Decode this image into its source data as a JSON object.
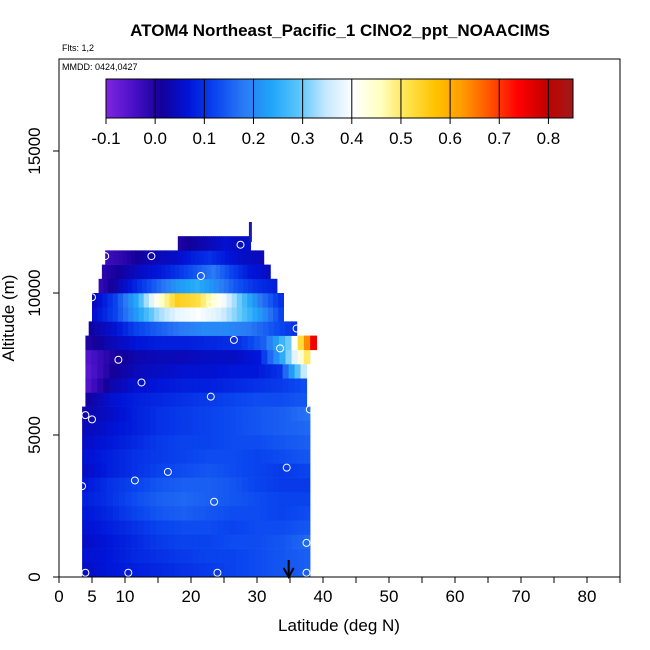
{
  "chart_data": {
    "type": "heatmap",
    "title": "ATOM4 Northeast_Pacific_1 ClNO2_ppt_NOAACIMS",
    "flights_label": "Flts: 1,2",
    "dates_label": "MMDD: 0424,0427",
    "xlabel": "Latitude (deg N)",
    "ylabel": "Altitude (m)",
    "xlim": [
      0,
      85
    ],
    "ylim": [
      0,
      17500
    ],
    "x_ticks": [
      0,
      5,
      10,
      20,
      30,
      40,
      50,
      60,
      70,
      80
    ],
    "x_tick_labels": [
      "0",
      "5",
      "10",
      "20",
      "30",
      "40",
      "50",
      "60",
      "70",
      "80"
    ],
    "x_minor_ticks": [
      15,
      25,
      35,
      45,
      55,
      65,
      75,
      85
    ],
    "y_ticks": [
      0,
      5000,
      10000,
      15000
    ],
    "y_tick_labels": [
      "0",
      "5000",
      "10000",
      "15000"
    ],
    "colorbar": {
      "min": -0.1,
      "max": 0.85,
      "tick_values": [
        -0.1,
        0.0,
        0.1,
        0.2,
        0.3,
        0.4,
        0.5,
        0.6,
        0.7,
        0.8
      ],
      "tick_labels": [
        "-0.1",
        "0.0",
        "0.1",
        "0.2",
        "0.3",
        "0.4",
        "0.5",
        "0.6",
        "0.7",
        "0.8"
      ],
      "colors": [
        "#7f26e0",
        "#4a10c8",
        "#14009a",
        "#0014d8",
        "#0a46f0",
        "#2a7af5",
        "#1fa4f8",
        "#5ac4fb",
        "#c4e8ff",
        "#ffffff",
        "#ffffc0",
        "#ffe24a",
        "#ffc200",
        "#ff9a00",
        "#ff5000",
        "#ff0000",
        "#c40000",
        "#a01a1a"
      ]
    },
    "field_rows": [
      {
        "y0": 0,
        "y1": 500,
        "lat_min": 3.5,
        "lat_max": 38,
        "values": [
          0.05,
          0.07,
          0.08,
          0.09,
          0.1,
          0.11,
          0.12,
          0.13,
          0.14,
          0.15
        ]
      },
      {
        "y0": 500,
        "y1": 1000,
        "lat_min": 3.5,
        "lat_max": 38,
        "values": [
          0.06,
          0.07,
          0.09,
          0.1,
          0.11,
          0.12,
          0.12,
          0.13,
          0.14,
          0.15
        ]
      },
      {
        "y0": 1000,
        "y1": 1500,
        "lat_min": 3.5,
        "lat_max": 38,
        "values": [
          0.05,
          0.07,
          0.09,
          0.11,
          0.12,
          0.12,
          0.13,
          0.13,
          0.14,
          0.16
        ]
      },
      {
        "y0": 1500,
        "y1": 2000,
        "lat_min": 3.5,
        "lat_max": 38,
        "values": [
          0.06,
          0.08,
          0.1,
          0.12,
          0.13,
          0.13,
          0.12,
          0.13,
          0.13,
          0.14
        ]
      },
      {
        "y0": 2000,
        "y1": 2500,
        "lat_min": 3.5,
        "lat_max": 38,
        "values": [
          0.07,
          0.09,
          0.12,
          0.14,
          0.15,
          0.14,
          0.13,
          0.13,
          0.12,
          0.13
        ]
      },
      {
        "y0": 2500,
        "y1": 3000,
        "lat_min": 3.5,
        "lat_max": 38,
        "values": [
          0.08,
          0.1,
          0.13,
          0.15,
          0.16,
          0.15,
          0.14,
          0.13,
          0.12,
          0.12
        ]
      },
      {
        "y0": 3000,
        "y1": 3500,
        "lat_min": 3.5,
        "lat_max": 38,
        "values": [
          0.07,
          0.1,
          0.12,
          0.14,
          0.15,
          0.15,
          0.14,
          0.12,
          0.11,
          0.11
        ]
      },
      {
        "y0": 3500,
        "y1": 4000,
        "lat_min": 3.5,
        "lat_max": 38,
        "values": [
          0.05,
          0.08,
          0.1,
          0.12,
          0.13,
          0.14,
          0.13,
          0.12,
          0.11,
          0.12
        ]
      },
      {
        "y0": 4000,
        "y1": 4500,
        "lat_min": 3.5,
        "lat_max": 38,
        "values": [
          0.06,
          0.08,
          0.1,
          0.11,
          0.12,
          0.13,
          0.13,
          0.12,
          0.13,
          0.14
        ]
      },
      {
        "y0": 4500,
        "y1": 5000,
        "lat_min": 3.5,
        "lat_max": 38,
        "values": [
          0.05,
          0.07,
          0.09,
          0.11,
          0.12,
          0.12,
          0.13,
          0.13,
          0.14,
          0.15
        ]
      },
      {
        "y0": 5000,
        "y1": 5500,
        "lat_min": 3.5,
        "lat_max": 38,
        "values": [
          0.04,
          0.06,
          0.08,
          0.1,
          0.11,
          0.12,
          0.13,
          0.14,
          0.15,
          0.16
        ]
      },
      {
        "y0": 5500,
        "y1": 6000,
        "lat_min": 3.5,
        "lat_max": 38,
        "values": [
          0.03,
          0.05,
          0.08,
          0.1,
          0.11,
          0.12,
          0.13,
          0.14,
          0.15,
          0.17
        ]
      },
      {
        "y0": 6000,
        "y1": 6500,
        "lat_min": 4,
        "lat_max": 37.5,
        "values": [
          0.02,
          0.06,
          0.08,
          0.09,
          0.1,
          0.11,
          0.12,
          0.13,
          0.13,
          0.14
        ]
      },
      {
        "y0": 6500,
        "y1": 7000,
        "lat_min": 4,
        "lat_max": 37.5,
        "values": [
          -0.05,
          0.03,
          0.06,
          0.07,
          0.08,
          0.08,
          0.09,
          0.1,
          0.11,
          0.13
        ]
      },
      {
        "y0": 7000,
        "y1": 7500,
        "lat_min": 4,
        "lat_max": 37.5,
        "values": [
          -0.06,
          0.01,
          0.04,
          0.05,
          0.06,
          0.06,
          0.07,
          0.07,
          0.1,
          0.35
        ]
      },
      {
        "y0": 7500,
        "y1": 8000,
        "lat_min": 4,
        "lat_max": 38,
        "values": [
          -0.05,
          0.0,
          0.03,
          0.04,
          0.04,
          0.05,
          0.05,
          0.07,
          0.25,
          0.5
        ]
      },
      {
        "y0": 8000,
        "y1": 8500,
        "lat_min": 4,
        "lat_max": 39,
        "values": [
          0.0,
          0.04,
          0.07,
          0.08,
          0.08,
          0.09,
          0.1,
          0.15,
          0.3,
          0.75
        ]
      },
      {
        "y0": 8500,
        "y1": 9000,
        "lat_min": 4.5,
        "lat_max": 36,
        "values": [
          0.02,
          0.06,
          0.12,
          0.15,
          0.18,
          0.2,
          0.2,
          0.18,
          0.14,
          0.1
        ]
      },
      {
        "y0": 9000,
        "y1": 9500,
        "lat_min": 5,
        "lat_max": 34,
        "values": [
          0.06,
          0.12,
          0.22,
          0.32,
          0.38,
          0.4,
          0.37,
          0.3,
          0.22,
          0.12
        ]
      },
      {
        "y0": 9500,
        "y1": 10000,
        "lat_min": 5,
        "lat_max": 34,
        "values": [
          0.04,
          0.12,
          0.24,
          0.42,
          0.55,
          0.52,
          0.42,
          0.3,
          0.18,
          0.1
        ]
      },
      {
        "y0": 10000,
        "y1": 10500,
        "lat_min": 6,
        "lat_max": 33,
        "values": [
          -0.02,
          0.04,
          0.1,
          0.16,
          0.22,
          0.25,
          0.2,
          0.14,
          0.1,
          0.08
        ]
      },
      {
        "y0": 10500,
        "y1": 11000,
        "lat_min": 6.5,
        "lat_max": 32,
        "values": [
          -0.01,
          0.02,
          0.05,
          0.07,
          0.1,
          0.14,
          0.18,
          0.12,
          0.07,
          0.05
        ]
      },
      {
        "y0": 11000,
        "y1": 11500,
        "lat_min": 7,
        "lat_max": 31,
        "values": [
          -0.03,
          -0.01,
          0.02,
          0.04,
          0.05,
          0.08,
          0.1,
          0.07,
          0.05,
          0.04
        ]
      },
      {
        "y0": 11500,
        "y1": 12000,
        "lat_min": 18,
        "lat_max": 29,
        "values": [
          0.0,
          0.01,
          0.02,
          0.03,
          0.04,
          0.05,
          0.06,
          0.05,
          0.05,
          0.06
        ]
      }
    ],
    "spike": {
      "lat": 29,
      "alt_min": 11800,
      "alt_max": 12500
    },
    "sample_points": [
      {
        "lat": 4,
        "alt": 150
      },
      {
        "lat": 10.5,
        "alt": 150
      },
      {
        "lat": 24,
        "alt": 150
      },
      {
        "lat": 37.5,
        "alt": 150
      },
      {
        "lat": 37.5,
        "alt": 1200
      },
      {
        "lat": 23.5,
        "alt": 2650
      },
      {
        "lat": 3.5,
        "alt": 3200
      },
      {
        "lat": 11.5,
        "alt": 3400
      },
      {
        "lat": 16.5,
        "alt": 3700
      },
      {
        "lat": 34.5,
        "alt": 3850
      },
      {
        "lat": 4,
        "alt": 5700
      },
      {
        "lat": 5,
        "alt": 5550
      },
      {
        "lat": 38,
        "alt": 5900
      },
      {
        "lat": 23,
        "alt": 6350
      },
      {
        "lat": 12.5,
        "alt": 6850
      },
      {
        "lat": 9,
        "alt": 7650
      },
      {
        "lat": 33.5,
        "alt": 8050
      },
      {
        "lat": 26.5,
        "alt": 8350
      },
      {
        "lat": 36,
        "alt": 8750
      },
      {
        "lat": 23,
        "alt": 9600
      },
      {
        "lat": 5,
        "alt": 9850
      },
      {
        "lat": 21.5,
        "alt": 10600
      },
      {
        "lat": 7,
        "alt": 11300
      },
      {
        "lat": 14,
        "alt": 11300
      },
      {
        "lat": 27.5,
        "alt": 11700
      }
    ],
    "arrow_marker": {
      "lat": 34.8,
      "alt_top": 600,
      "alt_bottom": 0
    }
  }
}
